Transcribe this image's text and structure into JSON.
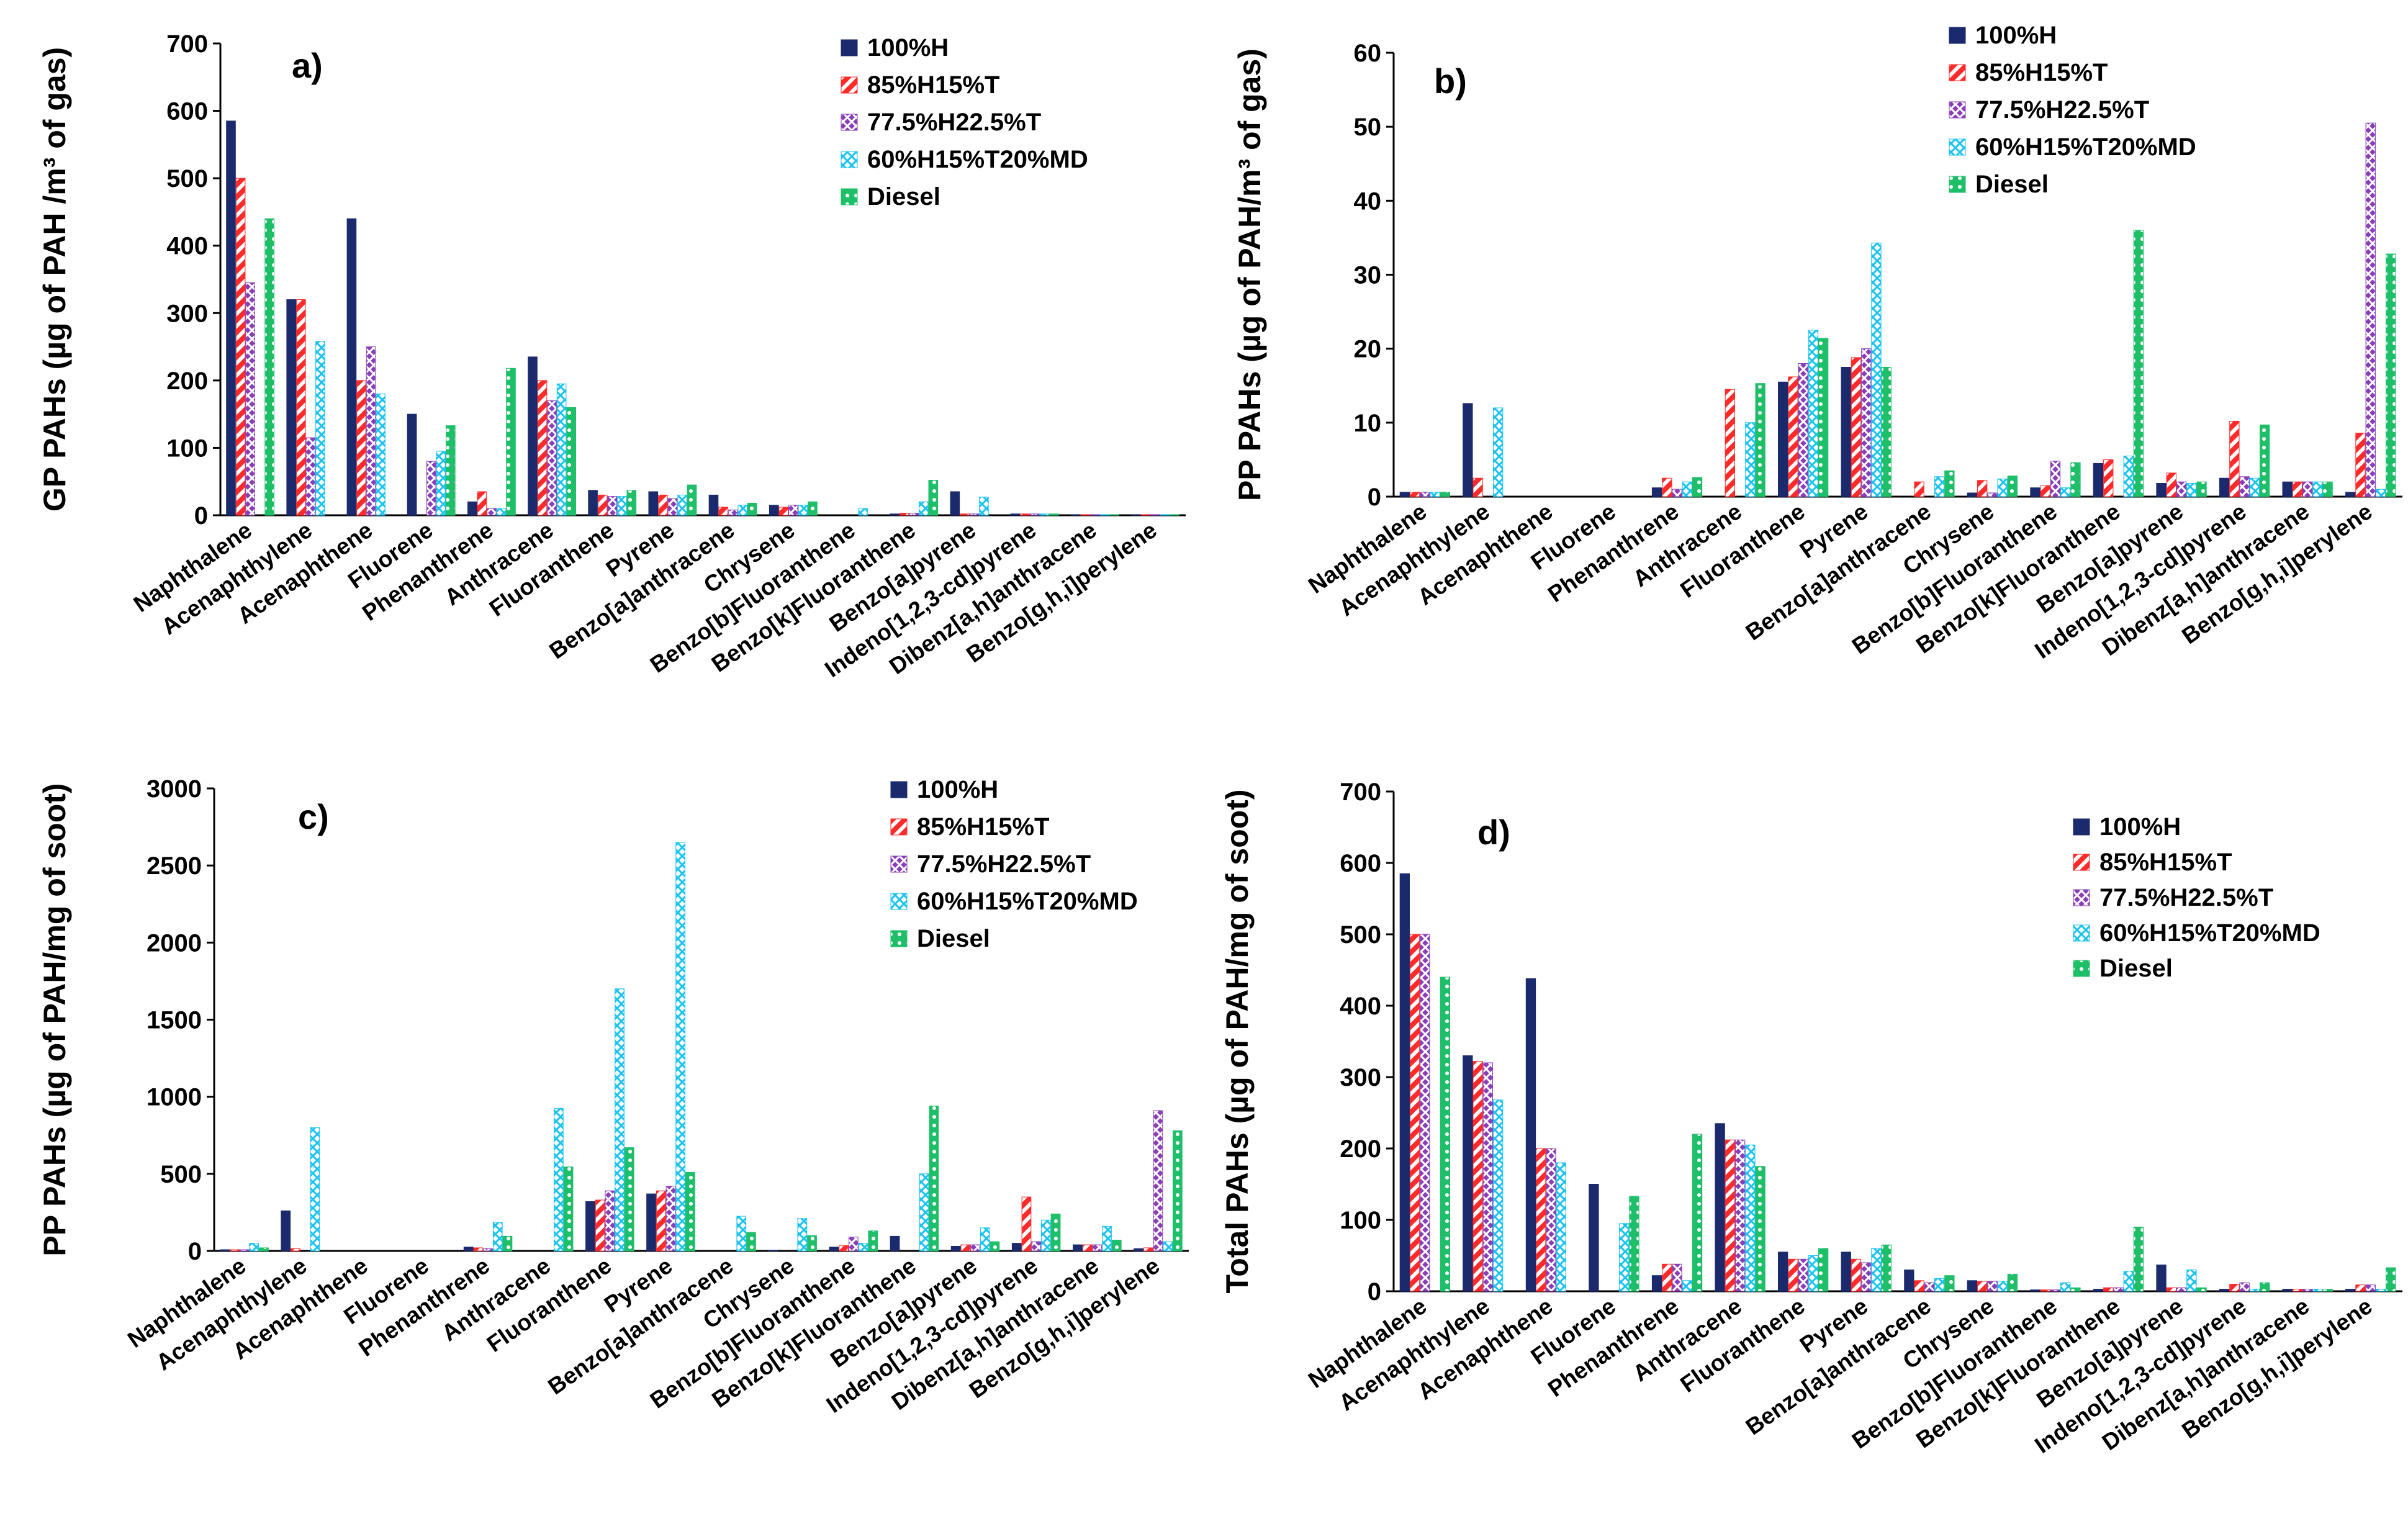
{
  "series_names": [
    "100%H",
    "85%H15%T",
    "77.5%H22.5%T",
    "60%H15%T20%MD",
    "Diesel"
  ],
  "series_colors": [
    "#1a2a6c",
    "#ff2a2a",
    "#8a3fb8",
    "#19c3f0",
    "#1fbf6a"
  ],
  "categories": [
    "Naphthalene",
    "Acenaphthylene",
    "Acenaphthene",
    "Fluorene",
    "Phenanthrene",
    "Anthracene",
    "Fluoranthene",
    "Pyrene",
    "Benzo[a]anthracene",
    "Chrysene",
    "Benzo[b]Fluoranthene",
    "Benzo[k]Fluoranthene",
    "Benzo[a]pyrene",
    "Indeno[1,2,3-cd]pyrene",
    "Dibenz[a,h]anthracene",
    "Benzo[g,h,i]perylene"
  ],
  "chart_data": [
    {
      "type": "bar",
      "panel": "a)",
      "ylabel": "GP PAHs (µg of PAH /m³ of gas)",
      "ylim": [
        0,
        700
      ],
      "yticks": [
        "0",
        "100",
        "200",
        "300",
        "400",
        "500",
        "600",
        "700"
      ],
      "series": [
        {
          "name": "100%H",
          "values": [
            585,
            320,
            440,
            150,
            20,
            235,
            37,
            35,
            30,
            15,
            0,
            2,
            35,
            2,
            1,
            1
          ]
        },
        {
          "name": "85%H15%T",
          "values": [
            500,
            320,
            200,
            0,
            35,
            200,
            30,
            30,
            12,
            12,
            0,
            3,
            2,
            2,
            1,
            1
          ]
        },
        {
          "name": "77.5%H22.5%T",
          "values": [
            345,
            115,
            250,
            80,
            10,
            170,
            28,
            25,
            8,
            15,
            0,
            3,
            2,
            2,
            1,
            1
          ]
        },
        {
          "name": "60%H15%T20%MD",
          "values": [
            0,
            258,
            180,
            95,
            10,
            195,
            28,
            30,
            15,
            15,
            10,
            20,
            27,
            2,
            1,
            1
          ]
        },
        {
          "name": "Diesel",
          "values": [
            440,
            0,
            0,
            133,
            218,
            160,
            37,
            45,
            18,
            20,
            0,
            52,
            0,
            2,
            1,
            1
          ]
        }
      ]
    },
    {
      "type": "bar",
      "panel": "b)",
      "ylabel": "PP PAHs (µg of PAH/m³ of gas)",
      "ylim": [
        0,
        60
      ],
      "yticks": [
        "0",
        "10",
        "20",
        "30",
        "40",
        "50",
        "60"
      ],
      "series": [
        {
          "name": "100%H",
          "values": [
            0.6,
            12.6,
            0,
            0,
            1.2,
            0,
            15.5,
            17.5,
            0,
            0.5,
            1.2,
            4.5,
            1.8,
            2.5,
            2,
            0.6
          ]
        },
        {
          "name": "85%H15%T",
          "values": [
            0.6,
            2.5,
            0,
            0,
            2.5,
            14.5,
            16.2,
            18.8,
            2,
            2.2,
            1.5,
            5,
            3.2,
            10.2,
            2,
            8.6
          ]
        },
        {
          "name": "77.5%H22.5%T",
          "values": [
            0.6,
            0,
            0,
            0,
            1,
            0,
            18,
            20,
            0,
            0.5,
            4.8,
            0,
            2,
            2.7,
            2,
            50.5
          ]
        },
        {
          "name": "60%H15%T20%MD",
          "values": [
            0.6,
            12,
            0,
            0,
            2,
            10,
            22.5,
            34.3,
            2.7,
            2.4,
            1.2,
            5.5,
            1.8,
            2.5,
            2,
            1
          ]
        },
        {
          "name": "Diesel",
          "values": [
            0.6,
            0,
            0,
            0,
            2.6,
            15.3,
            21.4,
            17.5,
            3.5,
            2.8,
            4.6,
            36,
            2,
            9.7,
            2,
            32.8
          ]
        }
      ]
    },
    {
      "type": "bar",
      "panel": "c)",
      "ylabel": "PP PAHs (µg of PAH/mg of soot)",
      "ylim": [
        0,
        3000
      ],
      "yticks": [
        "0",
        "500",
        "1000",
        "1500",
        "2000",
        "2500",
        "3000"
      ],
      "series": [
        {
          "name": "100%H",
          "values": [
            8,
            260,
            0,
            0,
            25,
            0,
            320,
            370,
            0,
            5,
            25,
            95,
            30,
            50,
            40,
            15
          ]
        },
        {
          "name": "85%H15%T",
          "values": [
            8,
            15,
            0,
            0,
            20,
            0,
            330,
            390,
            0,
            0,
            35,
            0,
            40,
            350,
            40,
            20
          ]
        },
        {
          "name": "77.5%H22.5%T",
          "values": [
            8,
            0,
            0,
            0,
            15,
            0,
            390,
            420,
            0,
            0,
            90,
            0,
            40,
            60,
            40,
            910
          ]
        },
        {
          "name": "60%H15%T20%MD",
          "values": [
            50,
            800,
            0,
            0,
            185,
            925,
            1700,
            2650,
            225,
            210,
            50,
            500,
            150,
            200,
            160,
            60
          ]
        },
        {
          "name": "Diesel",
          "values": [
            20,
            0,
            0,
            0,
            95,
            545,
            670,
            510,
            120,
            100,
            130,
            940,
            60,
            240,
            70,
            780
          ]
        }
      ]
    },
    {
      "type": "bar",
      "panel": "d)",
      "ylabel": "Total PAHs (µg of PAH/mg of soot)",
      "ylim": [
        0,
        700
      ],
      "yticks": [
        "0",
        "100",
        "200",
        "300",
        "400",
        "500",
        "600",
        "700"
      ],
      "series": [
        {
          "name": "100%H",
          "values": [
            585,
            330,
            438,
            150,
            22,
            235,
            55,
            55,
            30,
            15,
            2,
            3,
            37,
            3,
            3,
            3
          ]
        },
        {
          "name": "85%H15%T",
          "values": [
            500,
            322,
            200,
            0,
            38,
            212,
            45,
            45,
            15,
            14,
            2,
            5,
            5,
            10,
            3,
            9
          ]
        },
        {
          "name": "77.5%H22.5%T",
          "values": [
            500,
            320,
            200,
            0,
            38,
            212,
            45,
            40,
            12,
            14,
            2,
            5,
            5,
            12,
            3,
            9
          ]
        },
        {
          "name": "60%H15%T20%MD",
          "values": [
            0,
            268,
            180,
            95,
            15,
            205,
            50,
            60,
            18,
            14,
            12,
            28,
            30,
            3,
            3,
            3
          ]
        },
        {
          "name": "Diesel",
          "values": [
            440,
            0,
            0,
            133,
            220,
            175,
            60,
            65,
            22,
            24,
            5,
            90,
            5,
            12,
            3,
            33
          ]
        }
      ]
    }
  ]
}
